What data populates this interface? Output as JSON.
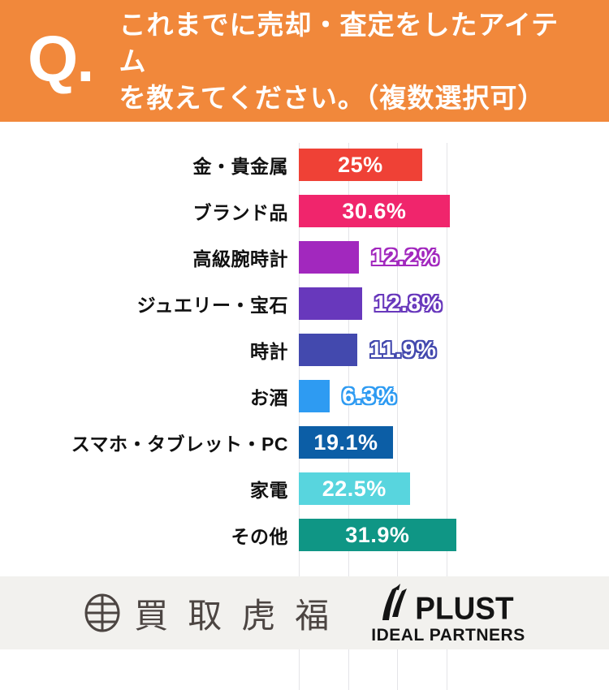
{
  "header": {
    "q_mark": "Q.",
    "title_line1": "これまでに売却・査定をしたアイテム",
    "title_line2": "を教えてください。（複数選択可）",
    "bg_color": "#F1883B",
    "text_color": "#FFFFFF"
  },
  "chart_data": {
    "type": "bar",
    "orientation": "horizontal",
    "unit": "%",
    "xlim": [
      0,
      33
    ],
    "grid": true,
    "gridlines_percent": [
      0,
      10,
      20,
      30
    ],
    "title": "これまでに売却・査定をしたアイテムを教えてください。（複数選択可）",
    "categories": [
      "金・貴金属",
      "ブランド品",
      "高級腕時計",
      "ジュエリー・宝石",
      "時計",
      "お酒",
      "スマホ・タブレット・PC",
      "家電",
      "その他"
    ],
    "values": [
      25,
      30.6,
      12.2,
      12.8,
      11.9,
      6.3,
      19.1,
      22.5,
      31.9
    ],
    "items": [
      {
        "label": "金・貴金属",
        "value": 25,
        "display": "25%",
        "color": "#EF4136",
        "value_label_position": "inside"
      },
      {
        "label": "ブランド品",
        "value": 30.6,
        "display": "30.6%",
        "color": "#F0256C",
        "value_label_position": "inside"
      },
      {
        "label": "高級腕時計",
        "value": 12.2,
        "display": "12.2%",
        "color": "#A228BE",
        "value_label_position": "outside"
      },
      {
        "label": "ジュエリー・宝石",
        "value": 12.8,
        "display": "12.8%",
        "color": "#6838BC",
        "value_label_position": "outside"
      },
      {
        "label": "時計",
        "value": 11.9,
        "display": "11.9%",
        "color": "#4349AE",
        "value_label_position": "outside"
      },
      {
        "label": "お酒",
        "value": 6.3,
        "display": "6.3%",
        "color": "#2E9BF2",
        "value_label_position": "outside"
      },
      {
        "label": "スマホ・タブレット・PC",
        "value": 19.1,
        "display": "19.1%",
        "color": "#0C5EA6",
        "value_label_position": "inside"
      },
      {
        "label": "家電",
        "value": 22.5,
        "display": "22.5%",
        "color": "#58D5DE",
        "value_label_position": "inside"
      },
      {
        "label": "その他",
        "value": 31.9,
        "display": "31.9%",
        "color": "#0F9685",
        "value_label_position": "inside"
      }
    ]
  },
  "footer": {
    "left_logo_text": "買取虎福",
    "right_logo_text": "PLUST",
    "right_logo_subtext": "IDEAL PARTNERS",
    "bg_color": "#F2F1EE"
  }
}
